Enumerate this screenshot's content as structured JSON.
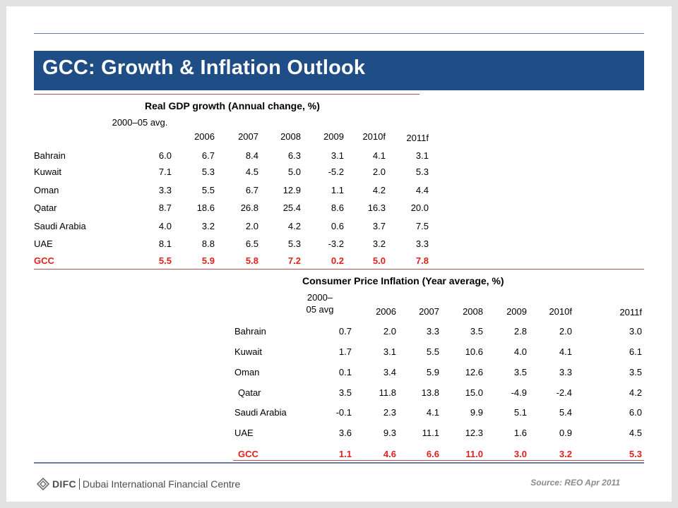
{
  "slide": {
    "title": "GCC: Growth & Inflation Outlook",
    "source": "Source: REO Apr 2011",
    "logo": {
      "mark": "DIFC",
      "name": "Dubai International Financial Centre"
    }
  },
  "gdp_table": {
    "title": "Real GDP growth (Annual  change, %)",
    "headers": [
      "2000–05 avg.",
      "2006",
      "2007",
      "2008",
      "2009",
      "2010f",
      "2011f"
    ],
    "rows": [
      {
        "country": "Bahrain",
        "values": [
          "6.0",
          "6.7",
          "8.4",
          "6.3",
          "3.1",
          "4.1",
          "3.1"
        ]
      },
      {
        "country": "Kuwait",
        "values": [
          "7.1",
          "5.3",
          "4.5",
          "5.0",
          "-5.2",
          "2.0",
          "5.3"
        ]
      },
      {
        "country": "Oman",
        "values": [
          "3.3",
          "5.5",
          "6.7",
          "12.9",
          "1.1",
          "4.2",
          "4.4"
        ]
      },
      {
        "country": "Qatar",
        "values": [
          "8.7",
          "18.6",
          "26.8",
          "25.4",
          "8.6",
          "16.3",
          "20.0"
        ]
      },
      {
        "country": "Saudi Arabia",
        "values": [
          "4.0",
          "3.2",
          "2.0",
          "4.2",
          "0.6",
          "3.7",
          "7.5"
        ]
      },
      {
        "country": "UAE",
        "values": [
          "8.1",
          "8.8",
          "6.5",
          "5.3",
          "-3.2",
          "3.2",
          "3.3"
        ]
      },
      {
        "country": "GCC",
        "values": [
          "5.5",
          "5.9",
          "5.8",
          "7.2",
          "0.2",
          "5.0",
          "7.8"
        ]
      }
    ]
  },
  "cpi_table": {
    "title": "Consumer Price Inflation (Year average, %)",
    "headers": [
      "2000–\n05 avg",
      "2006",
      "2007",
      "2008",
      "2009",
      "2010f",
      "2011f"
    ],
    "rows": [
      {
        "country": "Bahrain",
        "values": [
          "0.7",
          "2.0",
          "3.3",
          "3.5",
          "2.8",
          "2.0",
          "3.0"
        ]
      },
      {
        "country": "Kuwait",
        "values": [
          "1.7",
          "3.1",
          "5.5",
          "10.6",
          "4.0",
          "4.1",
          "6.1"
        ]
      },
      {
        "country": "Oman",
        "values": [
          "0.1",
          "3.4",
          "5.9",
          "12.6",
          "3.5",
          "3.3",
          "3.5"
        ]
      },
      {
        "country": "Qatar",
        "values": [
          "3.5",
          "11.8",
          "13.8",
          "15.0",
          "-4.9",
          "-2.4",
          "4.2"
        ]
      },
      {
        "country": "Saudi Arabia",
        "values": [
          "-0.1",
          "2.3",
          "4.1",
          "9.9",
          "5.1",
          "5.4",
          "6.0"
        ]
      },
      {
        "country": "UAE",
        "values": [
          "3.6",
          "9.3",
          "11.1",
          "12.3",
          "1.6",
          "0.9",
          "4.5"
        ]
      },
      {
        "country": "GCC",
        "values": [
          "1.1",
          "4.6",
          "6.6",
          "11.0",
          "3.0",
          "3.2",
          "5.3"
        ]
      }
    ]
  },
  "colors": {
    "title_bar": "#1f4d86",
    "highlight_row": "#e0201b",
    "rule": "#c0504d"
  }
}
